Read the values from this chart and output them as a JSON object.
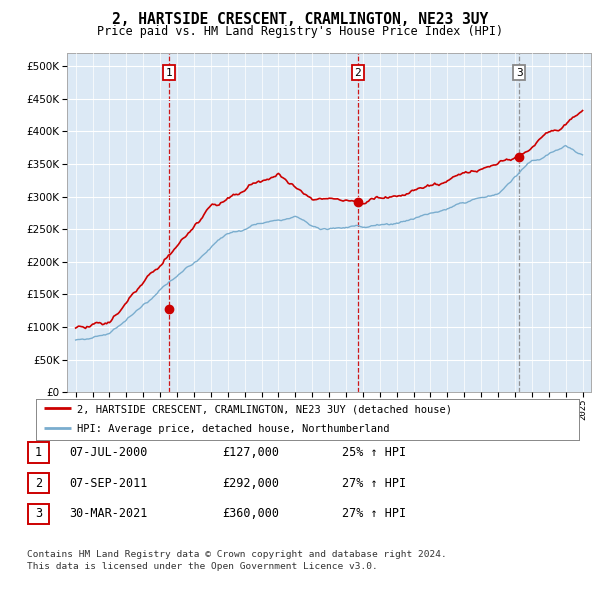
{
  "title": "2, HARTSIDE CRESCENT, CRAMLINGTON, NE23 3UY",
  "subtitle": "Price paid vs. HM Land Registry's House Price Index (HPI)",
  "legend_line1": "2, HARTSIDE CRESCENT, CRAMLINGTON, NE23 3UY (detached house)",
  "legend_line2": "HPI: Average price, detached house, Northumberland",
  "footnote1": "Contains HM Land Registry data © Crown copyright and database right 2024.",
  "footnote2": "This data is licensed under the Open Government Licence v3.0.",
  "transactions": [
    {
      "num": 1,
      "date": "07-JUL-2000",
      "price": 127000,
      "hpi_pct": "25% ↑ HPI",
      "year": 2000.52
    },
    {
      "num": 2,
      "date": "07-SEP-2011",
      "price": 292000,
      "hpi_pct": "27% ↑ HPI",
      "year": 2011.69
    },
    {
      "num": 3,
      "date": "30-MAR-2021",
      "price": 360000,
      "hpi_pct": "27% ↑ HPI",
      "year": 2021.25
    }
  ],
  "vline_styles": [
    "red_dashed",
    "red_dashed",
    "gray_dashed"
  ],
  "xlim": [
    1994.5,
    2025.5
  ],
  "ylim": [
    0,
    520000
  ],
  "yticks": [
    0,
    50000,
    100000,
    150000,
    200000,
    250000,
    300000,
    350000,
    400000,
    450000,
    500000
  ],
  "background_color": "#dce9f5",
  "grid_color": "#ffffff",
  "red_color": "#cc0000",
  "blue_color": "#7aadce",
  "xtick_years": [
    1995,
    1996,
    1997,
    1998,
    1999,
    2000,
    2001,
    2002,
    2003,
    2004,
    2005,
    2006,
    2007,
    2008,
    2009,
    2010,
    2011,
    2012,
    2013,
    2014,
    2015,
    2016,
    2017,
    2018,
    2019,
    2020,
    2021,
    2022,
    2023,
    2024,
    2025
  ]
}
